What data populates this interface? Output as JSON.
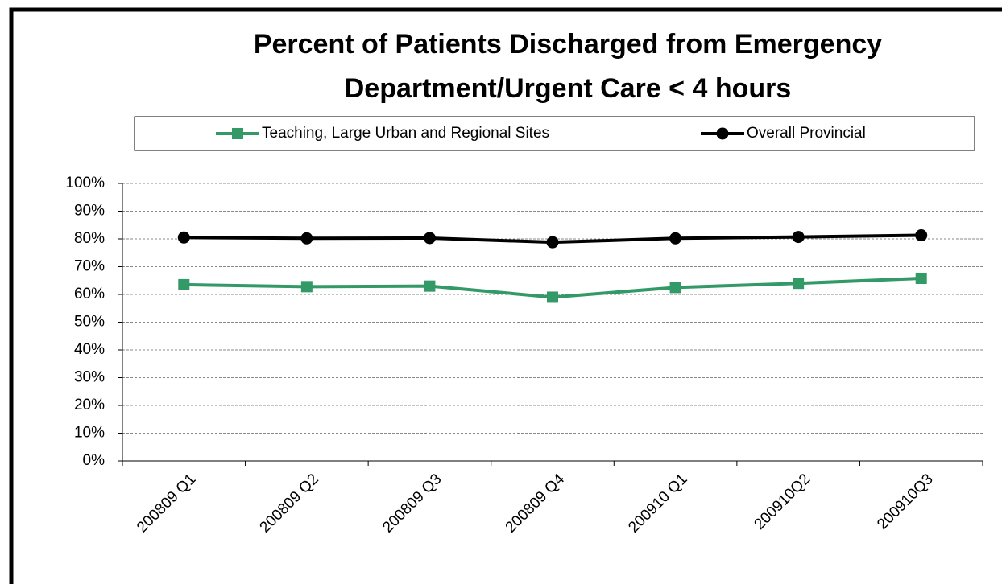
{
  "chart_data": {
    "type": "line",
    "title": "Percent of Patients Discharged from Emergency Department/Urgent Care < 4 hours",
    "categories": [
      "200809 Q1",
      "200809 Q2",
      "200809 Q3",
      "200809 Q4",
      "200910 Q1",
      "200910Q2",
      "200910Q3"
    ],
    "series": [
      {
        "name": "Teaching, Large Urban and Regional Sites",
        "color": "#339966",
        "marker": "square",
        "values": [
          63.5,
          62.8,
          63,
          59,
          62.5,
          64,
          65.8
        ]
      },
      {
        "name": "Overall Provincial",
        "color": "#000000",
        "marker": "circle",
        "values": [
          80.5,
          80.2,
          80.3,
          78.8,
          80.2,
          80.7,
          81.3
        ]
      }
    ],
    "ylim": [
      0,
      100
    ],
    "yticks": [
      {
        "value": 0,
        "label": "0%"
      },
      {
        "value": 10,
        "label": "10%"
      },
      {
        "value": 20,
        "label": "20%"
      },
      {
        "value": 30,
        "label": "30%"
      },
      {
        "value": 40,
        "label": "40%"
      },
      {
        "value": 50,
        "label": "50%"
      },
      {
        "value": 60,
        "label": "60%"
      },
      {
        "value": 70,
        "label": "70%"
      },
      {
        "value": 80,
        "label": "80%"
      },
      {
        "value": 90,
        "label": "90%"
      },
      {
        "value": 100,
        "label": "100%"
      }
    ],
    "grid": true,
    "legend": "top"
  }
}
